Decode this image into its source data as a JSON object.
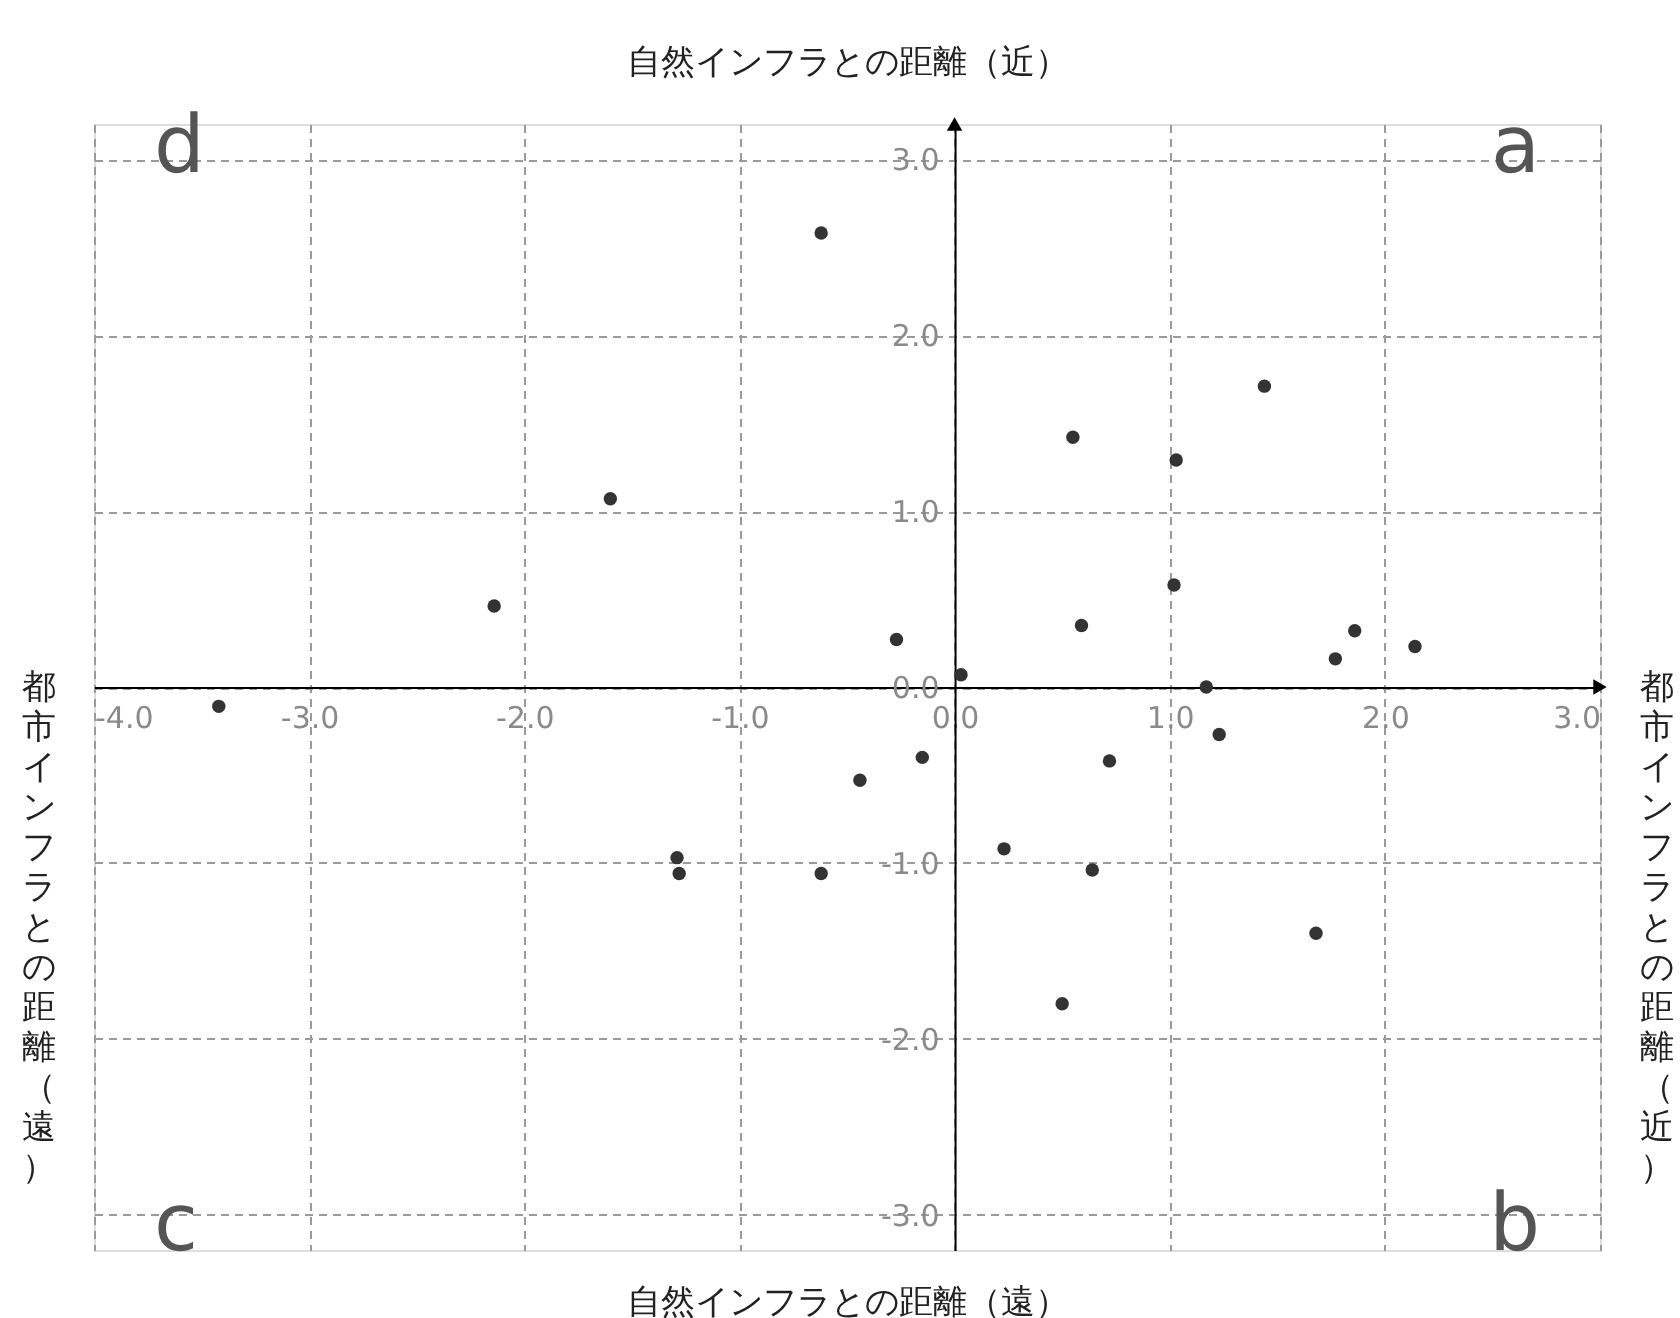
{
  "chart_data": {
    "type": "scatter",
    "xlabel": "自然インフラとの距離（遠）",
    "x2label": "自然インフラとの距離（近）",
    "ylabel": "都市インフラとの距離（遠）",
    "y2label": "都市インフラとの距離（近）",
    "annotations": [
      "d",
      "a",
      "c",
      "b"
    ],
    "x": [
      -3.42,
      -2.14,
      -1.6,
      -0.62,
      -0.27,
      0.03,
      0.55,
      1.03,
      1.44,
      1.02,
      0.59,
      1.77,
      1.86,
      2.14,
      1.17,
      -0.15,
      -0.44,
      -1.29,
      -1.28,
      -0.62,
      1.23,
      0.72,
      0.23,
      0.64,
      1.68,
      0.5
    ],
    "values": [
      -0.11,
      0.46,
      1.07,
      2.58,
      0.27,
      0.07,
      1.42,
      1.29,
      1.71,
      0.58,
      0.35,
      0.16,
      0.32,
      0.23,
      0.0,
      -0.4,
      -0.53,
      -0.97,
      -1.06,
      -1.06,
      -0.27,
      -0.42,
      -0.92,
      -1.04,
      -1.4,
      -1.8
    ],
    "color": "#333333",
    "marker": "circle",
    "xlim": [
      -4,
      3
    ],
    "ylim": [
      -3.2,
      3.2
    ],
    "xticks": [
      {
        "value": -4,
        "label": "-4.0"
      },
      {
        "value": -3,
        "label": "-3.0"
      },
      {
        "value": -2,
        "label": "-2.0"
      },
      {
        "value": -1,
        "label": "-1.0"
      },
      {
        "value": 0,
        "label": "0.0"
      },
      {
        "value": 1,
        "label": "1.0"
      },
      {
        "value": 2,
        "label": "2.0"
      },
      {
        "value": 3,
        "label": "3.0"
      }
    ],
    "yticks": [
      {
        "value": -3,
        "label": "-3.0"
      },
      {
        "value": -2,
        "label": "-2.0"
      },
      {
        "value": -1,
        "label": "-1.0"
      },
      {
        "value": 0,
        "label": "0.0"
      },
      {
        "value": 1,
        "label": "1.0"
      },
      {
        "value": 2,
        "label": "2.0"
      },
      {
        "value": 3,
        "label": "3.0"
      }
    ],
    "grid": true
  }
}
